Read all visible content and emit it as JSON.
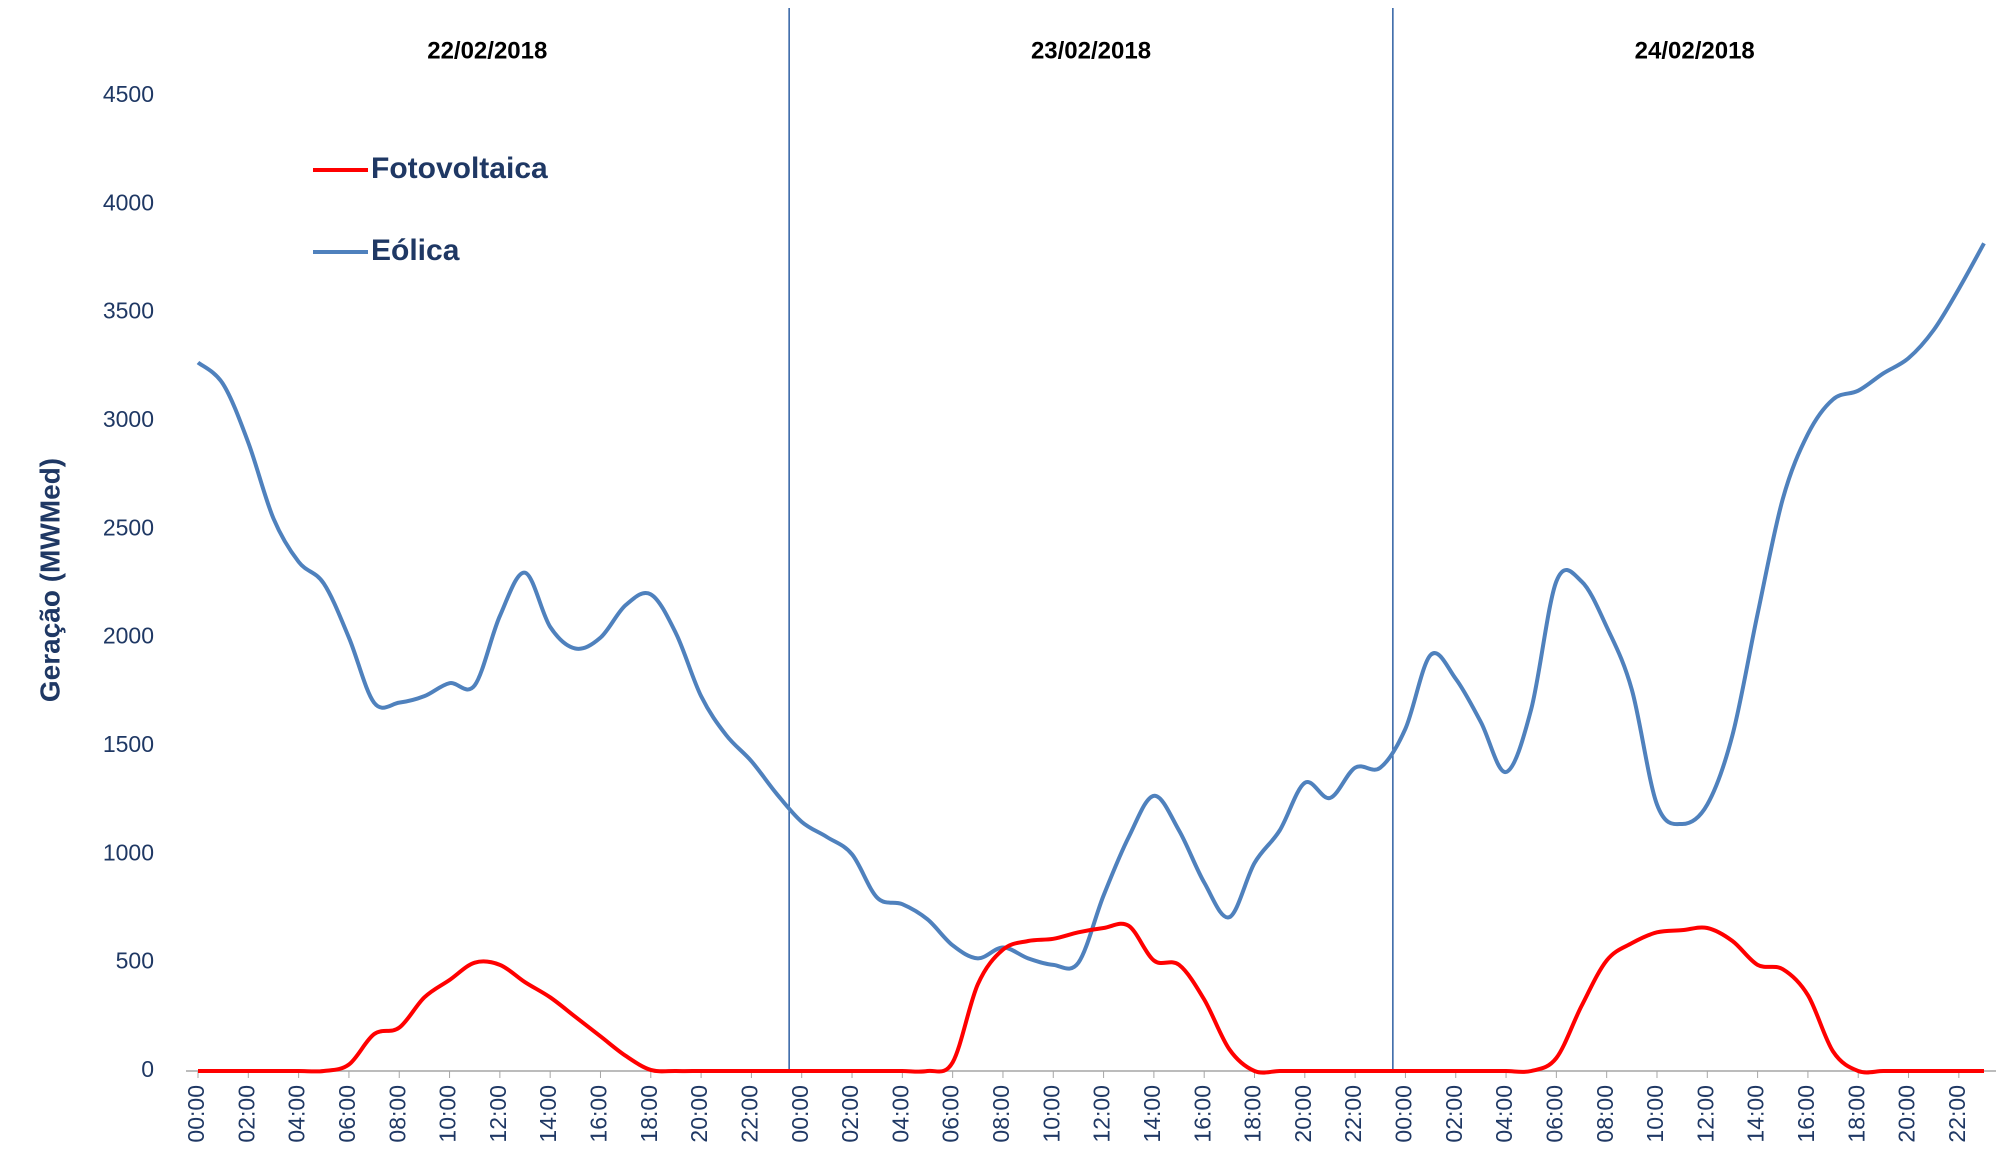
{
  "chart_data": {
    "type": "line",
    "y_label": "Geração (MWMed)",
    "annotations": [
      "22/02/2018",
      "23/02/2018",
      "24/02/2018"
    ],
    "categories": [
      "00:00",
      null,
      "02:00",
      null,
      "04:00",
      null,
      "06:00",
      null,
      "08:00",
      null,
      "10:00",
      null,
      "12:00",
      null,
      "14:00",
      null,
      "16:00",
      null,
      "18:00",
      null,
      "20:00",
      null,
      "22:00",
      null,
      "00:00",
      null,
      "02:00",
      null,
      "04:00",
      null,
      "06:00",
      null,
      "08:00",
      null,
      "10:00",
      null,
      "12:00",
      null,
      "14:00",
      null,
      "16:00",
      null,
      "18:00",
      null,
      "20:00",
      null,
      "22:00",
      null,
      "00:00",
      null,
      "02:00",
      null,
      "04:00",
      null,
      "06:00",
      null,
      "08:00",
      null,
      "10:00",
      null,
      "12:00",
      null,
      "14:00",
      null,
      "16:00",
      null,
      "18:00",
      null,
      "20:00",
      null,
      "22:00",
      null
    ],
    "series": [
      {
        "name": "Fotovoltaica",
        "color": "#ff0000",
        "values": [
          0,
          0,
          0,
          0,
          0,
          0,
          30,
          170,
          200,
          340,
          420,
          500,
          490,
          410,
          340,
          250,
          160,
          70,
          5,
          0,
          0,
          0,
          0,
          0,
          0,
          0,
          0,
          0,
          0,
          0,
          40,
          400,
          560,
          600,
          610,
          640,
          660,
          670,
          510,
          490,
          330,
          100,
          0,
          0,
          0,
          0,
          0,
          0,
          0,
          0,
          0,
          0,
          0,
          0,
          60,
          300,
          510,
          590,
          640,
          650,
          660,
          600,
          490,
          470,
          350,
          90,
          0,
          0,
          0,
          0,
          0,
          0
        ]
      },
      {
        "name": "Eólica",
        "color": "#4f81bd",
        "values": [
          3270,
          3170,
          2900,
          2550,
          2350,
          2250,
          2000,
          1700,
          1700,
          1730,
          1790,
          1780,
          2100,
          2300,
          2050,
          1950,
          2000,
          2150,
          2200,
          2020,
          1730,
          1550,
          1430,
          1280,
          1150,
          1080,
          1000,
          800,
          770,
          700,
          580,
          520,
          570,
          520,
          490,
          500,
          810,
          1080,
          1270,
          1110,
          870,
          710,
          960,
          1110,
          1330,
          1260,
          1400,
          1400,
          1580,
          1920,
          1810,
          1610,
          1380,
          1670,
          2260,
          2260,
          2050,
          1760,
          1230,
          1140,
          1230,
          1550,
          2110,
          2640,
          2940,
          3100,
          3140,
          3220,
          3290,
          3420,
          3610,
          3820
        ]
      }
    ],
    "ylim": [
      0,
      4500
    ],
    "yticks": [
      0,
      500,
      1000,
      1500,
      2000,
      2500,
      3000,
      3500,
      4000,
      4500
    ],
    "grid": false,
    "legend": "top-left"
  }
}
